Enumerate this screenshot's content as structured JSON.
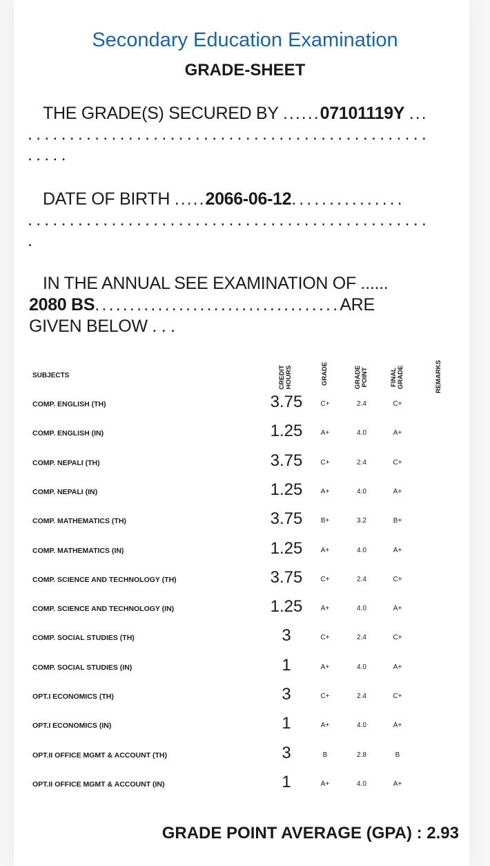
{
  "header": {
    "title": "Secondary Education Examination",
    "subtitle": "GRADE-SHEET"
  },
  "secured_by": {
    "label": "THE GRADE(S) SECURED BY",
    "lead_dots": "......",
    "value": "07101119Y",
    "trail_dots": "...",
    "dots_line_1": "................................................",
    "dots_line_2": "....."
  },
  "dob": {
    "label": "DATE OF BIRTH",
    "lead_dots": ".....",
    "value": "2066-06-12",
    "trail_dots": "...............",
    "dots_line_1": "................................................",
    "dots_line_2": "."
  },
  "exam": {
    "line1": "IN THE ANNUAL SEE EXAMINATION OF ......",
    "year": "2080 BS",
    "dots": "...................................",
    "are": "ARE",
    "line3": "GIVEN BELOW . . ."
  },
  "table": {
    "headers": {
      "subjects": "SUBJECTS",
      "credit_hours": [
        "CREDIT",
        "HOURS"
      ],
      "grade": "GRADE",
      "grade_point": [
        "GRADE",
        "POINT"
      ],
      "final_grade": [
        "FINAL",
        "GRADE"
      ],
      "remarks": "REMARKS"
    },
    "rows": [
      {
        "subject": "COMP. ENGLISH (TH)",
        "credit": "3.75",
        "grade": "C+",
        "point": "2.4",
        "final": "C+"
      },
      {
        "subject": "COMP. ENGLISH (IN)",
        "credit": "1.25",
        "grade": "A+",
        "point": "4.0",
        "final": "A+"
      },
      {
        "subject": "COMP. NEPALI (TH)",
        "credit": "3.75",
        "grade": "C+",
        "point": "2.4",
        "final": "C+"
      },
      {
        "subject": "COMP. NEPALI (IN)",
        "credit": "1.25",
        "grade": "A+",
        "point": "4.0",
        "final": "A+"
      },
      {
        "subject": "COMP. MATHEMATICS (TH)",
        "credit": "3.75",
        "grade": "B+",
        "point": "3.2",
        "final": "B+"
      },
      {
        "subject": "COMP. MATHEMATICS (IN)",
        "credit": "1.25",
        "grade": "A+",
        "point": "4.0",
        "final": "A+"
      },
      {
        "subject": "COMP. SCIENCE AND TECHNOLOGY (TH)",
        "credit": "3.75",
        "grade": "C+",
        "point": "2.4",
        "final": "C+"
      },
      {
        "subject": "COMP. SCIENCE AND TECHNOLOGY (IN)",
        "credit": "1.25",
        "grade": "A+",
        "point": "4.0",
        "final": "A+"
      },
      {
        "subject": "COMP. SOCIAL STUDIES (TH)",
        "credit": "3",
        "grade": "C+",
        "point": "2.4",
        "final": "C+"
      },
      {
        "subject": "COMP. SOCIAL STUDIES (IN)",
        "credit": "1",
        "grade": "A+",
        "point": "4.0",
        "final": "A+"
      },
      {
        "subject": "OPT.I ECONOMICS (TH)",
        "credit": "3",
        "grade": "C+",
        "point": "2.4",
        "final": "C+"
      },
      {
        "subject": "OPT.I ECONOMICS (IN)",
        "credit": "1",
        "grade": "A+",
        "point": "4.0",
        "final": "A+"
      },
      {
        "subject": "OPT.II OFFICE MGMT & ACCOUNT (TH)",
        "credit": "3",
        "grade": "B",
        "point": "2.8",
        "final": "B"
      },
      {
        "subject": "OPT.II OFFICE MGMT & ACCOUNT (IN)",
        "credit": "1",
        "grade": "A+",
        "point": "4.0",
        "final": "A+"
      }
    ]
  },
  "gpa": {
    "label": "GRADE POINT AVERAGE (GPA) :",
    "value": "2.93"
  },
  "colors": {
    "title": "#1565b0",
    "text": "#1a1a1a"
  }
}
